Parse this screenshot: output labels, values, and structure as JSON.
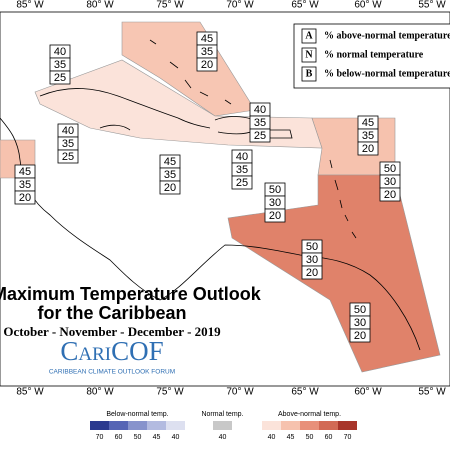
{
  "longitudes_top": [
    "85° W",
    "80° W",
    "75° W",
    "70° W",
    "65° W",
    "60° W",
    "55° W"
  ],
  "longitudes_bottom": [
    "85° W",
    "80° W",
    "75° W",
    "70° W",
    "65° W",
    "60° W",
    "55° W"
  ],
  "title": {
    "line1": "Maximum Temperature Outlook",
    "line2": "for the Caribbean",
    "line3": "October - November - December - 2019"
  },
  "logo": {
    "name": "CariCOF",
    "tagline": "CARIBBEAN CLIMATE OUTLOOK FORUM"
  },
  "key": [
    {
      "letter": "A",
      "text": "% above-normal temperature"
    },
    {
      "letter": "N",
      "text": "% normal temperature"
    },
    {
      "letter": "B",
      "text": "% below-normal temperature"
    }
  ],
  "regions": [
    {
      "above": 45,
      "normal": 35,
      "below": 20
    },
    {
      "above": 40,
      "normal": 35,
      "below": 25
    },
    {
      "above": 40,
      "normal": 35,
      "below": 25
    },
    {
      "above": 40,
      "normal": 35,
      "below": 25
    },
    {
      "above": 45,
      "normal": 35,
      "below": 20
    },
    {
      "above": 45,
      "normal": 35,
      "below": 20
    },
    {
      "above": 40,
      "normal": 35,
      "below": 25
    },
    {
      "above": 45,
      "normal": 35,
      "below": 20
    },
    {
      "above": 50,
      "normal": 30,
      "below": 20
    },
    {
      "above": 50,
      "normal": 30,
      "below": 20
    },
    {
      "above": 50,
      "normal": 30,
      "below": 20
    },
    {
      "above": 50,
      "normal": 30,
      "below": 20
    }
  ],
  "legend": {
    "below": {
      "title": "Below-normal temp.",
      "ticks": [
        70,
        60,
        50,
        45,
        40
      ]
    },
    "normal": {
      "title": "Normal temp.",
      "ticks": [
        40
      ]
    },
    "above": {
      "title": "Above-normal temp.",
      "ticks": [
        40,
        45,
        50,
        60,
        70
      ]
    }
  }
}
